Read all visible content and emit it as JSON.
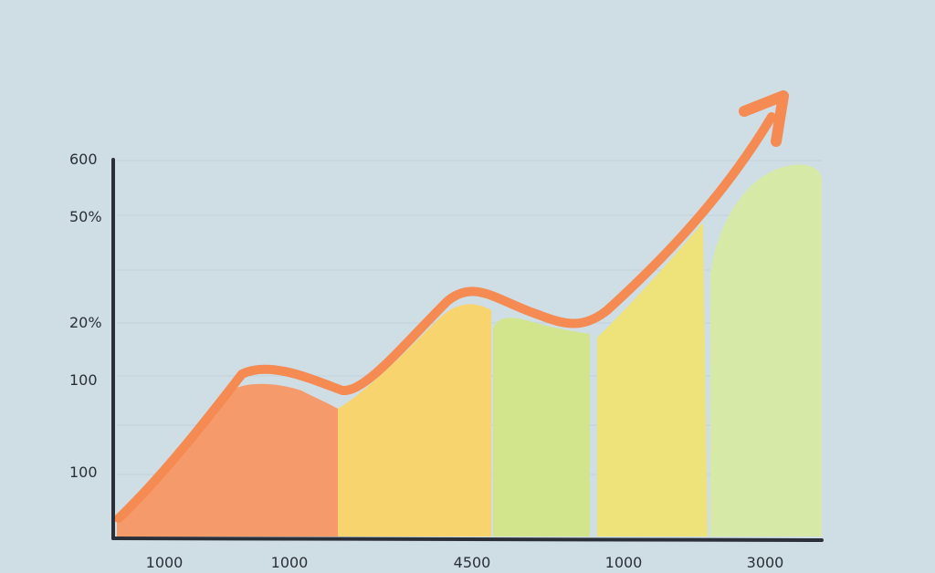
{
  "chart_data": {
    "type": "area",
    "title": "",
    "xlabel": "",
    "ylabel": "",
    "y_tick_labels": [
      "600",
      "50%",
      "20%",
      "100",
      "100"
    ],
    "x_tick_labels": [
      "1000",
      "1000",
      "4500",
      "1000",
      "3000"
    ],
    "segments": [
      {
        "color": "#f59a6a"
      },
      {
        "color": "#f7d46e"
      },
      {
        "color": "#d3e58c"
      },
      {
        "color": "#ede37a"
      },
      {
        "color": "#d6e9a6"
      }
    ],
    "trend_line": {
      "color": "#f58a52",
      "arrow": true
    },
    "grid": true
  }
}
